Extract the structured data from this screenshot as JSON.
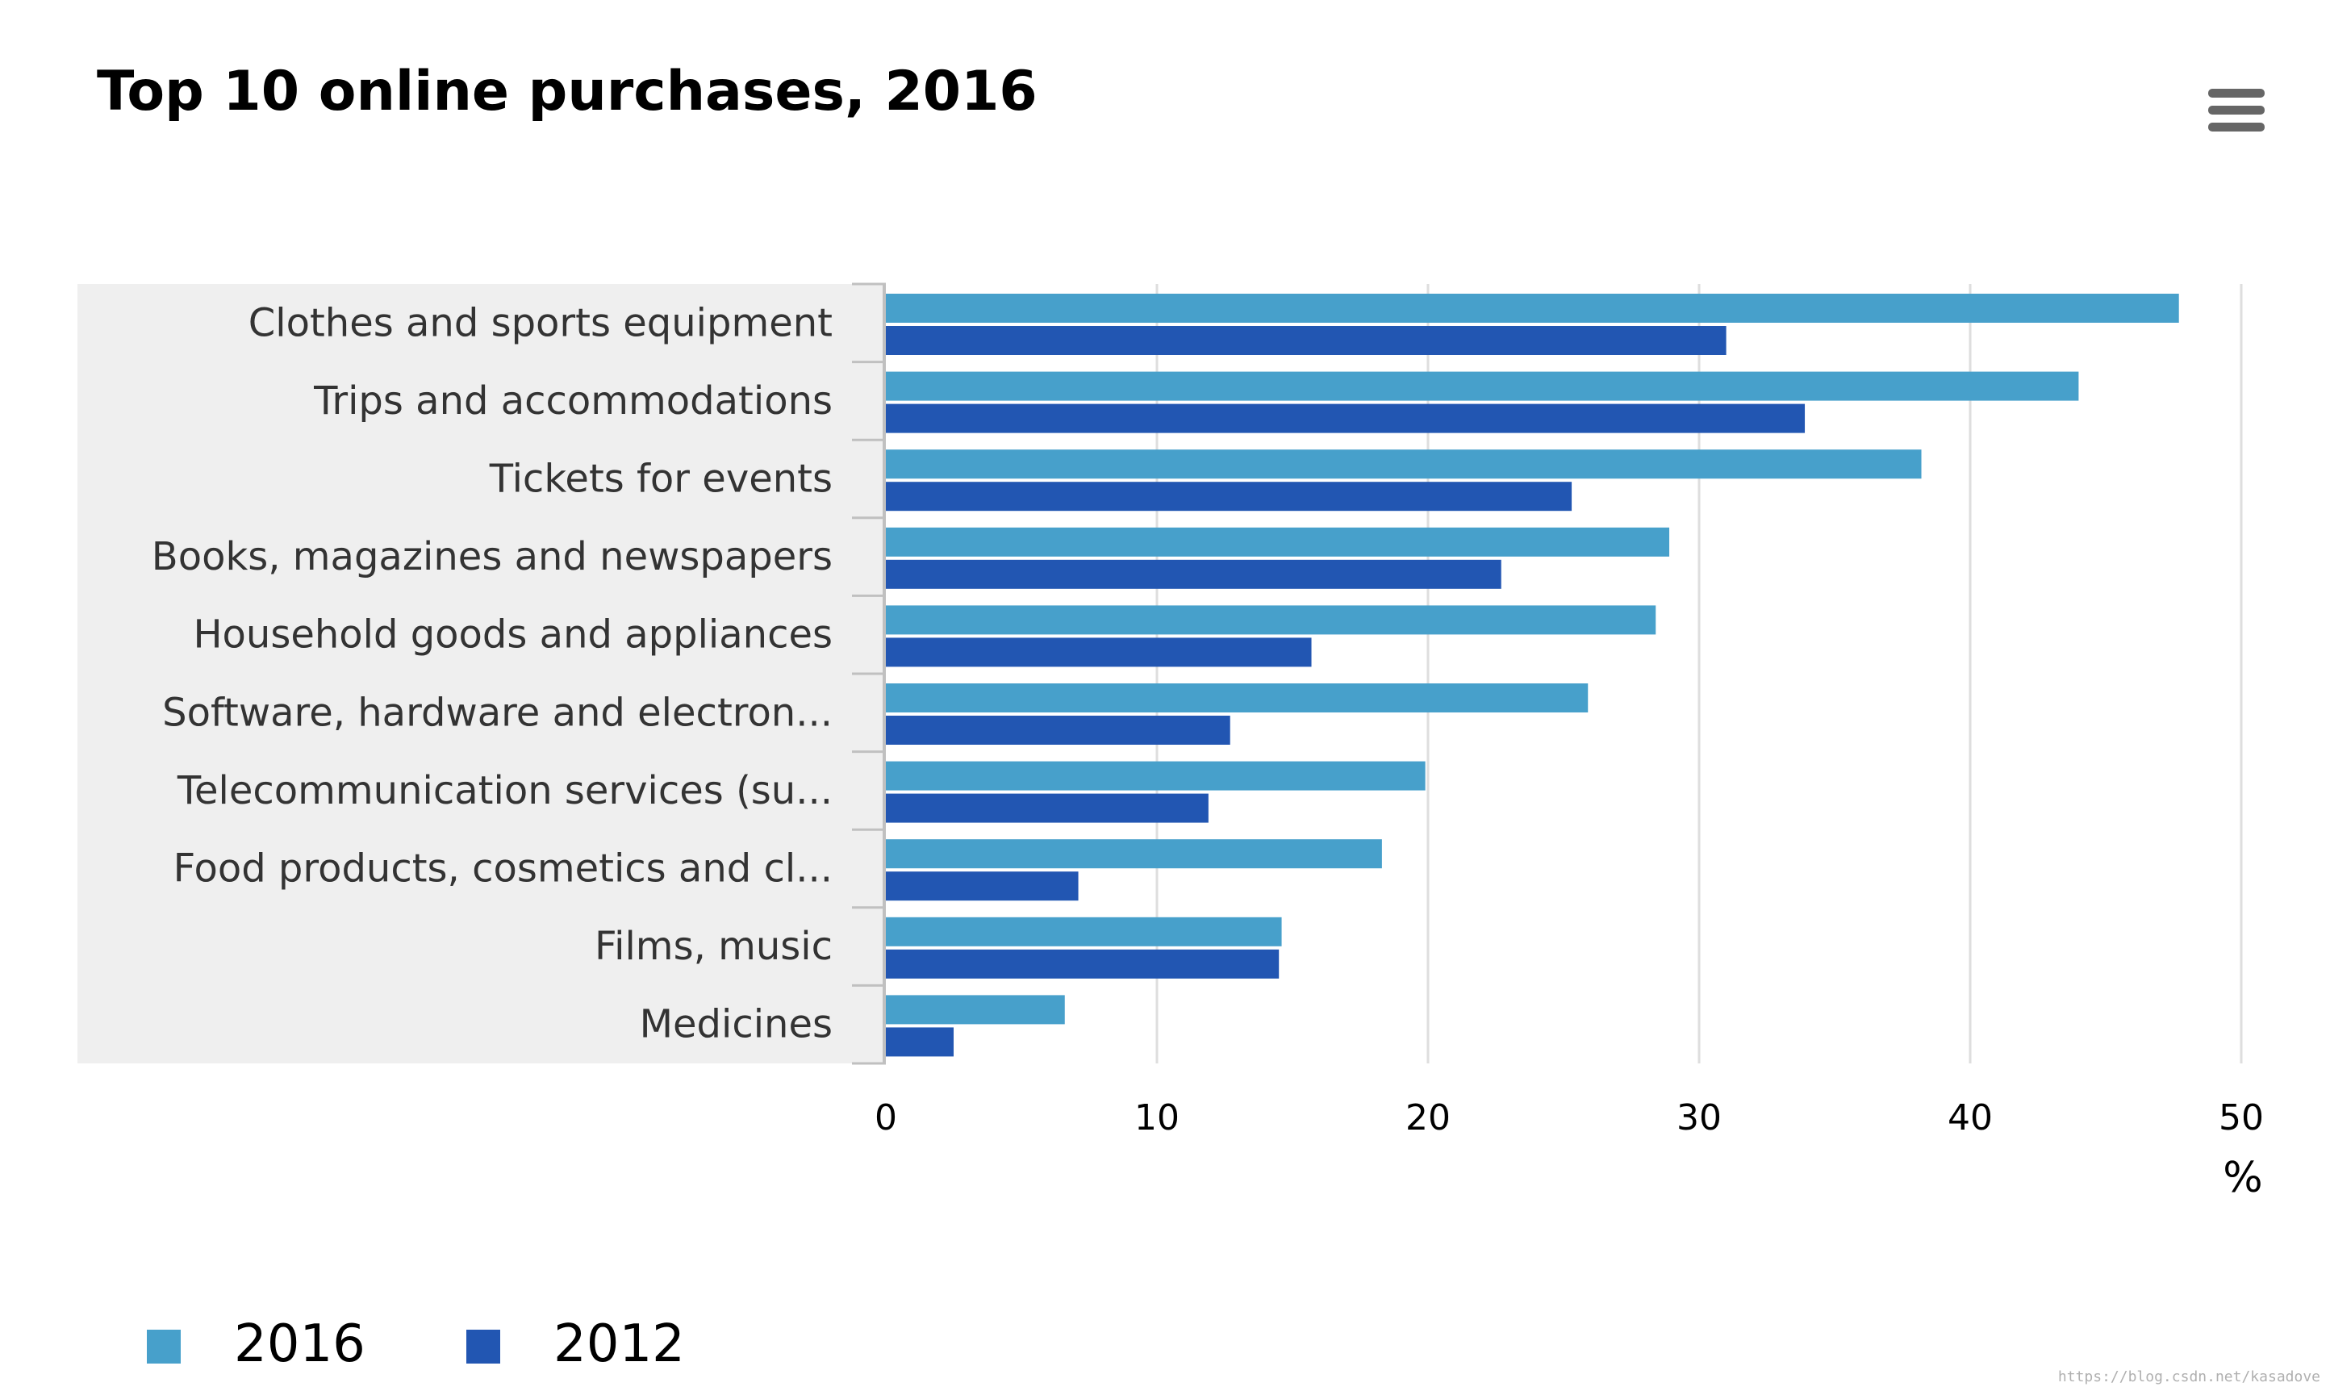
{
  "chart_data": {
    "type": "bar",
    "orientation": "horizontal",
    "title": "Top 10 online purchases, 2016",
    "categories": [
      "Clothes and sports equipment",
      "Trips and accommodations",
      "Tickets for events",
      "Books, magazines and newspapers",
      "Household goods and appliances",
      "Software, hardware and electron...",
      "Telecommunication services (su...",
      "Food products, cosmetics and cl...",
      "Films, music",
      "Medicines"
    ],
    "series": [
      {
        "name": "2016",
        "color": "#47a0cb",
        "values": [
          47.7,
          44.0,
          38.2,
          28.9,
          28.4,
          25.9,
          19.9,
          18.3,
          14.6,
          6.6
        ]
      },
      {
        "name": "2012",
        "color": "#2256b2",
        "values": [
          31.0,
          33.9,
          25.3,
          22.7,
          15.7,
          12.7,
          11.9,
          7.1,
          14.5,
          2.5
        ]
      }
    ],
    "xlabel": "%",
    "ylabel": "",
    "xlim": [
      0,
      50
    ],
    "xticks": [
      "0",
      "10",
      "20",
      "30",
      "40",
      "50"
    ],
    "grid": true,
    "legend_position": "bottom-left"
  },
  "menu_icon": "hamburger-menu-icon",
  "watermark": "https://blog.csdn.net/kasadove"
}
